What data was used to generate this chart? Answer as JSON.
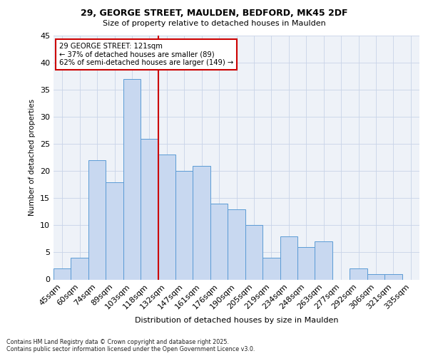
{
  "title1": "29, GEORGE STREET, MAULDEN, BEDFORD, MK45 2DF",
  "title2": "Size of property relative to detached houses in Maulden",
  "xlabel": "Distribution of detached houses by size in Maulden",
  "ylabel": "Number of detached properties",
  "categories": [
    "45sqm",
    "60sqm",
    "74sqm",
    "89sqm",
    "103sqm",
    "118sqm",
    "132sqm",
    "147sqm",
    "161sqm",
    "176sqm",
    "190sqm",
    "205sqm",
    "219sqm",
    "234sqm",
    "248sqm",
    "263sqm",
    "277sqm",
    "292sqm",
    "306sqm",
    "321sqm",
    "335sqm"
  ],
  "values": [
    2,
    4,
    22,
    18,
    37,
    26,
    23,
    20,
    21,
    14,
    13,
    10,
    4,
    8,
    6,
    7,
    0,
    2,
    1,
    1,
    0
  ],
  "bar_color": "#c8d8f0",
  "bar_edge_color": "#5b9bd5",
  "grid_color": "#c8d4e8",
  "bg_color": "#eef2f8",
  "vline_x": 5.5,
  "vline_color": "#cc0000",
  "annotation_text": "29 GEORGE STREET: 121sqm\n← 37% of detached houses are smaller (89)\n62% of semi-detached houses are larger (149) →",
  "annotation_box_color": "#ffffff",
  "annotation_box_edge": "#cc0000",
  "ylim": [
    0,
    45
  ],
  "yticks": [
    0,
    5,
    10,
    15,
    20,
    25,
    30,
    35,
    40,
    45
  ],
  "footer1": "Contains HM Land Registry data © Crown copyright and database right 2025.",
  "footer2": "Contains public sector information licensed under the Open Government Licence v3.0."
}
